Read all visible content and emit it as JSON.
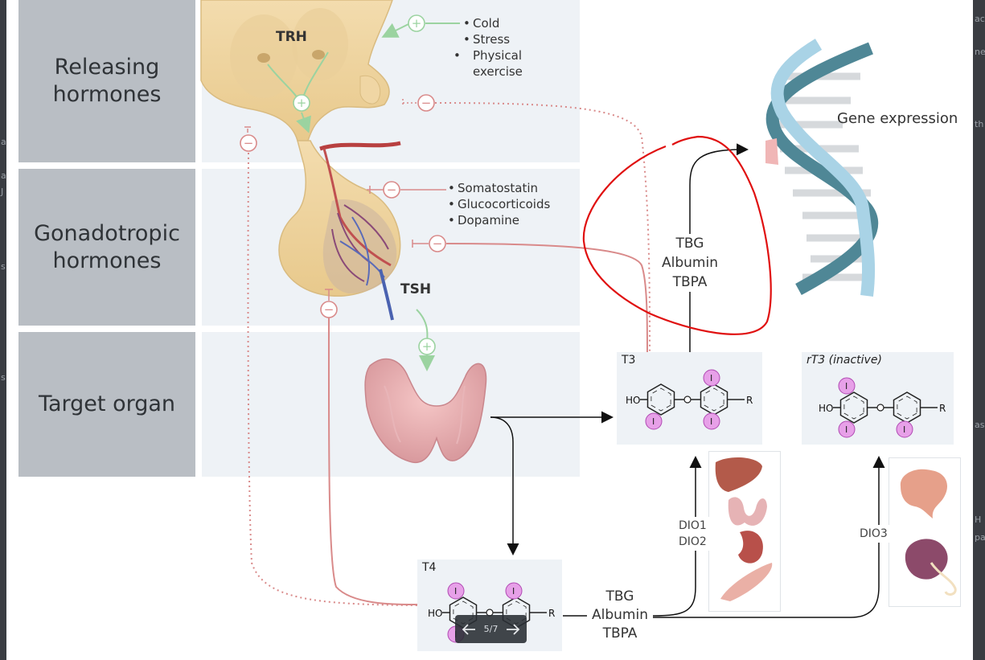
{
  "background_side_text": {
    "left": [
      "a",
      "a",
      "J",
      "s",
      "s"
    ],
    "right": [
      "ac",
      "ne",
      "th",
      "as",
      "H",
      "pa"
    ]
  },
  "rows": {
    "releasing": "Releasing\nhormones",
    "gonadotropic": "Gonadotropic\nhormones",
    "target": "Target organ"
  },
  "labels": {
    "trh": "TRH",
    "tsh": "TSH",
    "gene_expression": "Gene expression",
    "transport_top": "TBG\nAlbumin\nTBPA",
    "transport_bottom": "TBG\nAlbumin\nTBPA",
    "dio_t3": "DIO1\nDIO2",
    "dio_rt3": "DIO3"
  },
  "stimuli": [
    "Cold",
    "Stress",
    "Physical exercise"
  ],
  "inhibitors": [
    "Somatostatin",
    "Glucocorticoids",
    "Dopamine"
  ],
  "molecules": {
    "t4": {
      "title": "T4",
      "ho": "HO",
      "r": "R",
      "iodine": "I"
    },
    "t3": {
      "title": "T3",
      "ho": "HO",
      "r": "R",
      "iodine": "I"
    },
    "rt3": {
      "title": "rT3 (inactive)",
      "ho": "HO",
      "r": "R",
      "iodine": "I"
    }
  },
  "symbols": {
    "plus": "+",
    "minus": "−"
  },
  "carousel": {
    "counter": "5/7",
    "prev_icon": "arrow-left-icon",
    "next_icon": "arrow-right-icon"
  },
  "colors": {
    "panel_gray": "#b9bec4",
    "panel_light": "#eef2f6",
    "stimulate_green": "#9bd3a0",
    "inhibit_red": "#d98a8a",
    "iodine_pink": "#e7a0e8",
    "annotation_red": "#e01010",
    "dna_blue": "#a9d3e6"
  }
}
